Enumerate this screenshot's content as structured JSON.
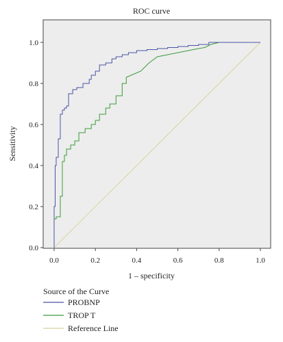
{
  "chart_data": {
    "type": "line",
    "title": "ROC curve",
    "xlabel": "1 – specificity",
    "ylabel": "Sensitivity",
    "xlim": [
      0,
      1
    ],
    "ylim": [
      0,
      1.1
    ],
    "x_ticks": [
      "0.0",
      "0.2",
      "0.4",
      "0.6",
      "0.8",
      "1.0"
    ],
    "y_ticks": [
      "0.0",
      "0.2",
      "0.4",
      "0.6",
      "0.8",
      "1.0"
    ],
    "grid": false,
    "plot_background": "#ededed",
    "legend_title": "Source of the Curve",
    "legend_position": "bottom",
    "series": [
      {
        "name": "PROBNP",
        "color": "#4a52a6",
        "x": [
          0.0,
          0.0,
          0.005,
          0.005,
          0.01,
          0.01,
          0.02,
          0.02,
          0.03,
          0.03,
          0.04,
          0.04,
          0.05,
          0.05,
          0.06,
          0.06,
          0.07,
          0.07,
          0.09,
          0.09,
          0.11,
          0.11,
          0.14,
          0.14,
          0.17,
          0.17,
          0.18,
          0.18,
          0.2,
          0.2,
          0.22,
          0.22,
          0.25,
          0.25,
          0.28,
          0.28,
          0.3,
          0.3,
          0.33,
          0.33,
          0.36,
          0.36,
          0.4,
          0.4,
          0.45,
          0.45,
          0.5,
          0.5,
          0.55,
          0.55,
          0.6,
          0.6,
          0.65,
          0.65,
          0.7,
          0.7,
          0.75,
          0.75,
          0.8,
          1.0
        ],
        "y": [
          0.0,
          0.2,
          0.2,
          0.4,
          0.4,
          0.44,
          0.44,
          0.53,
          0.53,
          0.65,
          0.65,
          0.67,
          0.67,
          0.68,
          0.68,
          0.69,
          0.69,
          0.75,
          0.75,
          0.77,
          0.77,
          0.78,
          0.78,
          0.8,
          0.8,
          0.82,
          0.82,
          0.84,
          0.84,
          0.86,
          0.86,
          0.89,
          0.89,
          0.9,
          0.9,
          0.92,
          0.92,
          0.93,
          0.93,
          0.94,
          0.94,
          0.95,
          0.95,
          0.96,
          0.96,
          0.965,
          0.965,
          0.97,
          0.97,
          0.975,
          0.975,
          0.98,
          0.98,
          0.985,
          0.985,
          0.99,
          0.99,
          1.0,
          1.0,
          1.0
        ]
      },
      {
        "name": "TROP T",
        "color": "#3a9a3a",
        "x": [
          0.0,
          0.0,
          0.01,
          0.01,
          0.03,
          0.03,
          0.04,
          0.04,
          0.05,
          0.05,
          0.06,
          0.06,
          0.08,
          0.08,
          0.1,
          0.1,
          0.12,
          0.12,
          0.15,
          0.15,
          0.18,
          0.18,
          0.2,
          0.2,
          0.22,
          0.22,
          0.25,
          0.25,
          0.27,
          0.27,
          0.3,
          0.3,
          0.33,
          0.33,
          0.35,
          0.35,
          0.42,
          0.46,
          0.5,
          0.55,
          0.6,
          0.65,
          0.7,
          0.73,
          0.76,
          0.8,
          1.0
        ],
        "y": [
          0.0,
          0.14,
          0.14,
          0.15,
          0.15,
          0.25,
          0.25,
          0.42,
          0.42,
          0.45,
          0.45,
          0.48,
          0.48,
          0.5,
          0.5,
          0.52,
          0.52,
          0.56,
          0.56,
          0.58,
          0.58,
          0.6,
          0.6,
          0.62,
          0.62,
          0.65,
          0.65,
          0.68,
          0.68,
          0.7,
          0.7,
          0.74,
          0.74,
          0.8,
          0.8,
          0.83,
          0.86,
          0.9,
          0.93,
          0.94,
          0.95,
          0.96,
          0.97,
          0.975,
          0.99,
          1.0,
          1.0
        ]
      },
      {
        "name": "Reference Line",
        "color": "#d8d49a",
        "x": [
          0.0,
          1.0
        ],
        "y": [
          0.0,
          1.0
        ]
      }
    ]
  }
}
